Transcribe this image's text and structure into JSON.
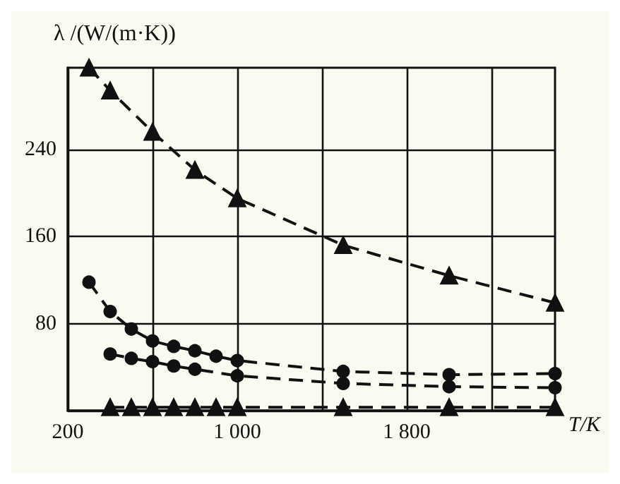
{
  "chart_data": {
    "type": "line",
    "ylabel": "λ /(W/(m·K))",
    "xlabel": "T/K",
    "xlim": [
      200,
      2500
    ],
    "ylim": [
      0,
      315
    ],
    "xticks": [
      200,
      {
        "value": 600,
        "label": null
      },
      {
        "value": 1000,
        "label": "1 000"
      },
      {
        "value": 1400,
        "label": null
      },
      {
        "value": 1800,
        "label": "1 800"
      },
      {
        "value": 2200,
        "label": null
      }
    ],
    "yticks": [
      {
        "value": 0,
        "label": null
      },
      80,
      160,
      240
    ],
    "grid": true,
    "line_style": "dashed",
    "series": [
      {
        "color": "#111111",
        "marker": "triangle",
        "x": [
          300,
          400,
          600,
          800,
          1000,
          1500,
          2000,
          2500
        ],
        "values": [
          315,
          294,
          256,
          221,
          195,
          152,
          124,
          99
        ]
      },
      {
        "color": "#111111",
        "marker": "circle",
        "x": [
          300,
          400,
          500,
          600,
          700,
          800,
          900,
          1000,
          1500,
          2000,
          2500
        ],
        "values": [
          118,
          91,
          75,
          64,
          59,
          55,
          50,
          46,
          36,
          33,
          34
        ]
      },
      {
        "color": "#111111",
        "marker": "circle",
        "x": [
          400,
          500,
          600,
          700,
          800,
          1000,
          1500,
          2000,
          2500
        ],
        "values": [
          52,
          48,
          45,
          41,
          38,
          32,
          25,
          22,
          21
        ]
      },
      {
        "color": "#111111",
        "marker": "triangle",
        "x": [
          400,
          500,
          600,
          700,
          800,
          900,
          1000,
          1500,
          2000,
          2500
        ],
        "values": [
          3,
          3,
          3,
          3,
          3,
          3,
          3,
          3,
          3,
          3
        ]
      }
    ]
  }
}
